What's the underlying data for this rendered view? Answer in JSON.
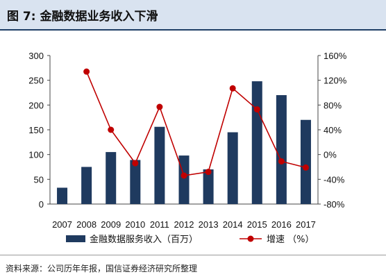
{
  "figure": {
    "title": "图 7:  金融数据业务收入下滑",
    "source": "资料来源：公司历年年报，国信证券经济研究所整理"
  },
  "colors": {
    "bar": "#1f3a5f",
    "line": "#c00000",
    "header_bg": "#d9e3f0",
    "header_rule": "#1f3f66"
  },
  "chart_data": {
    "type": "bar",
    "categories": [
      "2007",
      "2008",
      "2009",
      "2010",
      "2011",
      "2012",
      "2013",
      "2014",
      "2015",
      "2016",
      "2017"
    ],
    "series": [
      {
        "name": "金融数据服务收入（百万）",
        "type": "bar",
        "axis": "left",
        "values": [
          33,
          75,
          105,
          89,
          156,
          98,
          70,
          145,
          248,
          220,
          170
        ]
      },
      {
        "name": "增速 （%）",
        "type": "line",
        "axis": "right",
        "values": [
          null,
          134,
          40,
          -14,
          77,
          -34,
          -28,
          107,
          73,
          -11,
          -21
        ]
      }
    ],
    "y_left": {
      "min": 0,
      "max": 300,
      "ticks": [
        "0",
        "50",
        "100",
        "150",
        "200",
        "250",
        "300"
      ]
    },
    "y_right": {
      "min": -80,
      "max": 160,
      "ticks": [
        "-80%",
        "-40%",
        "0%",
        "40%",
        "80%",
        "120%",
        "160%"
      ]
    },
    "legend": {
      "position": "bottom"
    },
    "grid": false
  }
}
